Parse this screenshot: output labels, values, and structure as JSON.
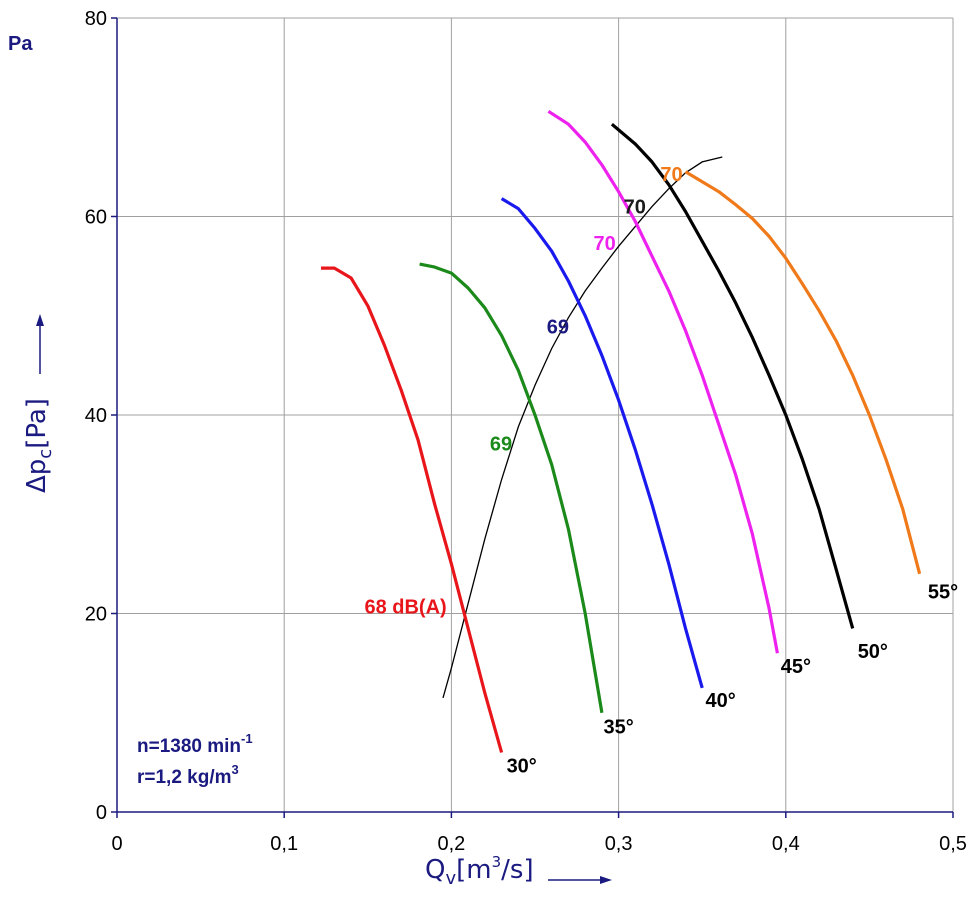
{
  "chart_data": {
    "type": "line",
    "xlabel": "Q",
    "xlabel_sub": "v",
    "xlabel_unit": "[m",
    "xlabel_unit_sup": "3",
    "xlabel_unit_end": "/s]",
    "ylabel": "Δp",
    "ylabel_sub": "c",
    "ylabel_unit": "[Pa]",
    "y_unit_corner": "Pa",
    "xlim": [
      0,
      0.5
    ],
    "ylim": [
      0,
      80
    ],
    "x_ticks": [
      {
        "value": 0,
        "label": "0"
      },
      {
        "value": 0.1,
        "label": "0,1"
      },
      {
        "value": 0.2,
        "label": "0,2"
      },
      {
        "value": 0.3,
        "label": "0,3"
      },
      {
        "value": 0.4,
        "label": "0,4"
      },
      {
        "value": 0.5,
        "label": "0,5"
      }
    ],
    "y_ticks": [
      {
        "value": 0,
        "label": "0"
      },
      {
        "value": 20,
        "label": "20"
      },
      {
        "value": 40,
        "label": "40"
      },
      {
        "value": 60,
        "label": "60"
      },
      {
        "value": 80,
        "label": "80"
      }
    ],
    "grid": true,
    "series": [
      {
        "name": "30°",
        "color": "#e8161b",
        "x": [
          0.122,
          0.13,
          0.14,
          0.15,
          0.16,
          0.17,
          0.18,
          0.19,
          0.2,
          0.21,
          0.22,
          0.23
        ],
        "y": [
          54.8,
          54.8,
          53.8,
          51.0,
          47.0,
          42.5,
          37.5,
          31.0,
          25.0,
          18.5,
          12.0,
          6.0
        ]
      },
      {
        "name": "35°",
        "color": "#1b8a1b",
        "x": [
          0.181,
          0.19,
          0.2,
          0.21,
          0.22,
          0.23,
          0.24,
          0.25,
          0.26,
          0.27,
          0.28,
          0.29
        ],
        "y": [
          55.2,
          54.9,
          54.3,
          52.8,
          50.8,
          48.0,
          44.5,
          40.0,
          35.0,
          28.5,
          20.0,
          10.0
        ]
      },
      {
        "name": "40°",
        "color": "#1a1aee",
        "x": [
          0.23,
          0.24,
          0.25,
          0.26,
          0.27,
          0.28,
          0.29,
          0.3,
          0.31,
          0.32,
          0.33,
          0.34,
          0.35
        ],
        "y": [
          61.8,
          60.8,
          58.8,
          56.5,
          53.5,
          50.0,
          46.0,
          41.5,
          36.5,
          31.0,
          25.0,
          18.5,
          12.5
        ]
      },
      {
        "name": "45°",
        "color": "#ee22ee",
        "x": [
          0.258,
          0.27,
          0.28,
          0.29,
          0.3,
          0.31,
          0.32,
          0.33,
          0.34,
          0.35,
          0.36,
          0.37,
          0.38,
          0.39,
          0.395
        ],
        "y": [
          70.6,
          69.3,
          67.5,
          65.2,
          62.5,
          59.5,
          56.0,
          52.5,
          48.5,
          44.0,
          39.0,
          34.0,
          28.0,
          20.5,
          16.0
        ]
      },
      {
        "name": "50°",
        "color": "#000000",
        "x": [
          0.296,
          0.31,
          0.32,
          0.33,
          0.34,
          0.35,
          0.36,
          0.37,
          0.38,
          0.39,
          0.4,
          0.41,
          0.42,
          0.43,
          0.44
        ],
        "y": [
          69.3,
          67.3,
          65.5,
          63.2,
          60.5,
          57.5,
          54.5,
          51.3,
          47.8,
          44.0,
          40.0,
          35.5,
          30.5,
          24.5,
          18.5
        ]
      },
      {
        "name": "55°",
        "color": "#f07a1a",
        "x": [
          0.34,
          0.35,
          0.36,
          0.37,
          0.38,
          0.39,
          0.4,
          0.41,
          0.42,
          0.43,
          0.44,
          0.45,
          0.46,
          0.47,
          0.48
        ],
        "y": [
          64.5,
          63.5,
          62.5,
          61.2,
          59.8,
          58.0,
          55.8,
          53.2,
          50.5,
          47.5,
          44.0,
          40.0,
          35.5,
          30.5,
          24.0
        ]
      }
    ],
    "noise_curve": {
      "color": "#000000",
      "x": [
        0.195,
        0.2,
        0.21,
        0.22,
        0.23,
        0.24,
        0.25,
        0.26,
        0.27,
        0.28,
        0.29,
        0.3,
        0.31,
        0.32,
        0.33,
        0.34,
        0.35,
        0.362
      ],
      "y": [
        11.5,
        14.5,
        21.0,
        27.5,
        33.5,
        38.8,
        43.0,
        46.7,
        49.8,
        52.5,
        54.8,
        57.0,
        59.0,
        61.0,
        62.8,
        64.4,
        65.5,
        66.0
      ]
    },
    "curve_labels": [
      {
        "text": "30°",
        "x": 0.233,
        "y": 4.0,
        "color": "#000000"
      },
      {
        "text": "35°",
        "x": 0.291,
        "y": 7.9,
        "color": "#000000"
      },
      {
        "text": "40°",
        "x": 0.352,
        "y": 10.6,
        "color": "#000000"
      },
      {
        "text": "45°",
        "x": 0.397,
        "y": 14.0,
        "color": "#000000"
      },
      {
        "text": "50°",
        "x": 0.443,
        "y": 15.5,
        "color": "#000000"
      },
      {
        "text": "55°",
        "x": 0.485,
        "y": 21.5,
        "color": "#000000"
      }
    ],
    "annotations": [
      {
        "text": "68 dB(A)",
        "x": 0.148,
        "y": 20.0,
        "color": "#e8161b"
      },
      {
        "text": "69",
        "x": 0.223,
        "y": 36.4,
        "color": "#1b8a1b"
      },
      {
        "text": "69",
        "x": 0.257,
        "y": 48.2,
        "color": "#1a1a80"
      },
      {
        "text": "70",
        "x": 0.285,
        "y": 56.6,
        "color": "#ee22ee"
      },
      {
        "text": "70",
        "x": 0.303,
        "y": 60.3,
        "color": "#1a1a1a"
      },
      {
        "text": "70",
        "x": 0.325,
        "y": 63.6,
        "color": "#f07a1a"
      }
    ],
    "info": {
      "line1": "n=1380 min",
      "line1_sup": "-1",
      "line2": "r=1,2 kg/m",
      "line2_sup": "3"
    }
  }
}
